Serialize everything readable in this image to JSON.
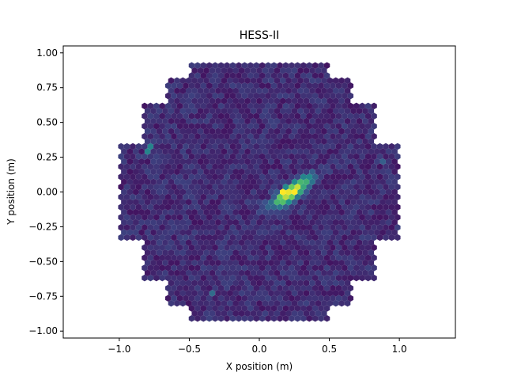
{
  "chart_data": {
    "type": "heatmap",
    "subtype": "hexagonal-camera-image",
    "title": "HESS-II",
    "xlabel": "X position (m)",
    "ylabel": "Y position (m)",
    "xlim": [
      -1.4,
      1.4
    ],
    "ylim": [
      -1.05,
      1.05
    ],
    "xticks": [
      -1.0,
      -0.5,
      0.0,
      0.5,
      1.0
    ],
    "xtick_labels": [
      "−1.0",
      "−0.5",
      "0.0",
      "0.5",
      "1.0"
    ],
    "yticks": [
      -1.0,
      -0.75,
      -0.5,
      -0.25,
      0.0,
      0.25,
      0.5,
      0.75,
      1.0
    ],
    "ytick_labels": [
      "−1.00",
      "−0.75",
      "−0.50",
      "−0.25",
      "0.00",
      "0.25",
      "0.50",
      "0.75",
      "1.00"
    ],
    "grid": false,
    "legend": "none",
    "colormap": [
      "#440154",
      "#3b528b",
      "#21918c",
      "#5ec962",
      "#fde725"
    ],
    "camera": {
      "pixel_pitch_m": 0.042,
      "x_extent_m": [
        -1.0,
        1.0
      ],
      "y_extent_m": [
        -0.93,
        0.93
      ],
      "outline_half_widths_m": [
        {
          "y_max": 0.35,
          "half_width": 1.0
        },
        {
          "y_max": 0.64,
          "half_width": 0.83
        },
        {
          "y_max": 0.81,
          "half_width": 0.66
        },
        {
          "y_max": 0.93,
          "half_width": 0.5
        }
      ]
    },
    "image": {
      "background_level": 0.1,
      "noise_amplitude": 0.14,
      "shower": {
        "center": [
          0.23,
          0.0
        ],
        "angle_deg": 37,
        "length_m": 0.11,
        "width_m": 0.035,
        "peak_level": 0.92,
        "brightest_pixel": [
          0.16,
          -0.01
        ]
      },
      "hotspots": [
        {
          "x": -0.79,
          "y": 0.31,
          "level": 0.45
        },
        {
          "x": -0.32,
          "y": -0.72,
          "level": 0.35
        },
        {
          "x": 0.88,
          "y": 0.23,
          "level": 0.3
        }
      ]
    }
  }
}
